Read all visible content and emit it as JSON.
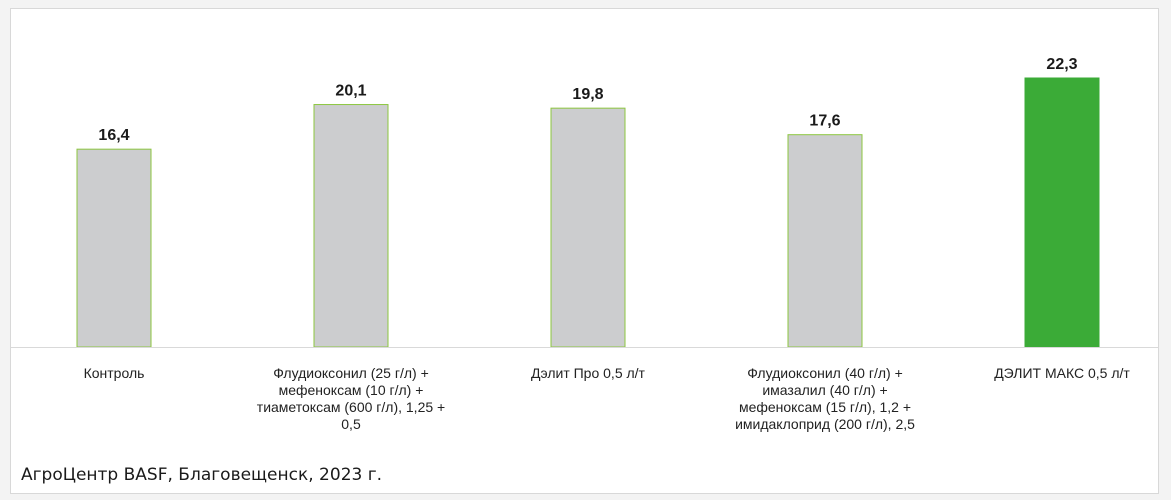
{
  "chart_data": {
    "type": "bar",
    "categories": [
      "Контроль",
      "Флудиоксонил (25 г/л) +\nмефеноксам (10 г/л) +\nтиаметоксам (600 г/л), 1,25 +\n0,5",
      "Дэлит Про 0,5 л/т",
      "Флудиоксонил (40 г/л) +\nимазалил (40 г/л) +\nмефеноксам (15 г/л), 1,2 +\nимидаклоприд (200 г/л), 2,5",
      "ДЭЛИТ МАКС 0,5 л/т"
    ],
    "values": [
      16.4,
      20.1,
      19.8,
      17.6,
      22.3
    ],
    "value_labels": [
      "16,4",
      "20,1",
      "19,8",
      "17,6",
      "22,3"
    ],
    "ylim": [
      0,
      22.3
    ],
    "grid": false,
    "legend": "none",
    "colors": {
      "bar_default": "#cccdcf",
      "bar_default_border": "#8cc63f",
      "bar_highlight": "#3bab37",
      "baseline": "#d9d9d9"
    },
    "highlight_index": 4
  },
  "source_note": "АгроЦентр BASF, Благовещенск, 2023 г."
}
